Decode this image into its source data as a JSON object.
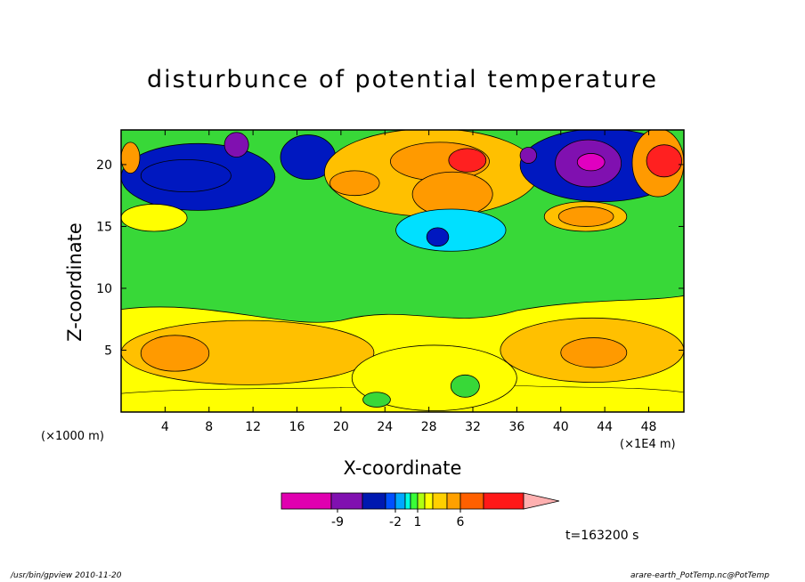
{
  "chart_data": {
    "type": "heatmap",
    "title": "disturbunce of potential temperature",
    "xlabel": "X-coordinate",
    "ylabel": "Z-coordinate",
    "x_unit_left": "(×1000 m)",
    "x_unit_right": "(×1E4 m)",
    "xlim": [
      0,
      51.2
    ],
    "ylim": [
      0,
      22.8
    ],
    "xticks": [
      4,
      8,
      12,
      16,
      20,
      24,
      28,
      32,
      36,
      40,
      44,
      48
    ],
    "yticks": [
      5,
      10,
      15,
      20
    ],
    "colorbar": {
      "colors": [
        "#e000b0",
        "#8010b0",
        "#0018b0",
        "#0050ff",
        "#00a8ff",
        "#00ffe0",
        "#38ff38",
        "#b0ff10",
        "#ffff00",
        "#ffd000",
        "#ffa000",
        "#ff6000",
        "#ff1818",
        "#ff7070",
        "#ffb0b0"
      ],
      "labels": [
        "-9",
        "-2",
        "1",
        "6"
      ],
      "levels": [
        -9,
        -2,
        1,
        6
      ]
    },
    "colors": {
      "background": "#38d838",
      "lower_yellow": "#ffff00",
      "gold": "#ffc000",
      "orange": "#ff9a00",
      "red": "#ff2020",
      "blue": "#0018c0",
      "purple": "#8010b0",
      "magenta": "#e000c0",
      "cyan": "#00e0ff"
    }
  },
  "time_label": "t=163200 s",
  "footer_left": "/usr/bin/gpview  2010-11-20",
  "footer_right": "arare-earth_PotTemp.nc@PotTemp"
}
